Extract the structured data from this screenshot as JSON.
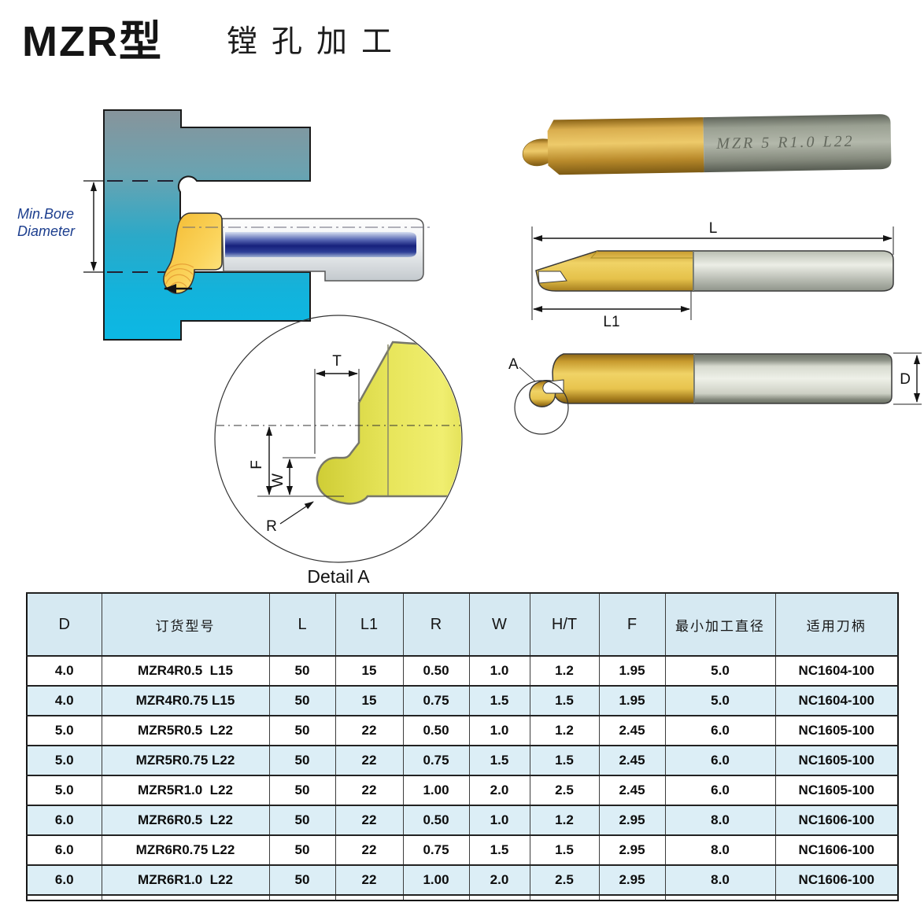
{
  "title": {
    "model": "MZR型",
    "subtitle": "镗孔加工"
  },
  "left_diagram": {
    "label_line1": "Min.Bore",
    "label_line2": "Diameter"
  },
  "photo": {
    "engraving": "MZR 5 R1.0 L22"
  },
  "length_drawing": {
    "dim_l": "L",
    "dim_l1": "L1"
  },
  "side_drawing": {
    "detail_ref": "A",
    "dim_d": "D"
  },
  "detail_view": {
    "dim_t": "T",
    "dim_f": "F",
    "dim_w": "W",
    "dim_r": "R",
    "caption": "Detail A"
  },
  "table": {
    "headers": [
      "D",
      "订货型号",
      "L",
      "L1",
      "R",
      "W",
      "H/T",
      "F",
      "最小加工直径",
      "适用刀柄"
    ],
    "rows": [
      [
        "4.0",
        "MZR4R0.5  L15",
        "50",
        "15",
        "0.50",
        "1.0",
        "1.2",
        "1.95",
        "5.0",
        "NC1604-100"
      ],
      [
        "4.0",
        "MZR4R0.75 L15",
        "50",
        "15",
        "0.75",
        "1.5",
        "1.5",
        "1.95",
        "5.0",
        "NC1604-100"
      ],
      [
        "5.0",
        "MZR5R0.5  L22",
        "50",
        "22",
        "0.50",
        "1.0",
        "1.2",
        "2.45",
        "6.0",
        "NC1605-100"
      ],
      [
        "5.0",
        "MZR5R0.75 L22",
        "50",
        "22",
        "0.75",
        "1.5",
        "1.5",
        "2.45",
        "6.0",
        "NC1605-100"
      ],
      [
        "5.0",
        "MZR5R1.0  L22",
        "50",
        "22",
        "1.00",
        "2.0",
        "2.5",
        "2.45",
        "6.0",
        "NC1605-100"
      ],
      [
        "6.0",
        "MZR6R0.5  L22",
        "50",
        "22",
        "0.50",
        "1.0",
        "1.2",
        "2.95",
        "8.0",
        "NC1606-100"
      ],
      [
        "6.0",
        "MZR6R0.75 L22",
        "50",
        "22",
        "0.75",
        "1.5",
        "1.5",
        "2.95",
        "8.0",
        "NC1606-100"
      ],
      [
        "6.0",
        "MZR6R1.0  L22",
        "50",
        "22",
        "1.00",
        "2.0",
        "2.5",
        "2.95",
        "8.0",
        "NC1606-100"
      ]
    ]
  },
  "colors": {
    "table_header_bg": "#d6e9f2",
    "table_stripe_bg": "#dceef6",
    "workpiece_cyan": "#0fb5e2",
    "workpiece_gray": "#87949b",
    "tool_gold": "#f0c040",
    "tip_yellow_green": "#e3e14b",
    "shank_core_blue": "#16217c",
    "label_blue": "#1c3e8e"
  }
}
